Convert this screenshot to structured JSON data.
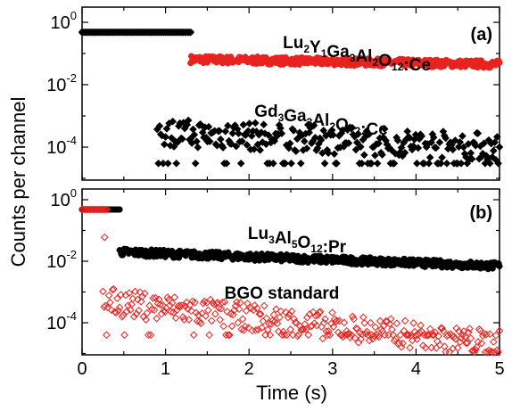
{
  "chart_data": {
    "type": "scatter",
    "xlabel": "Time (s)",
    "ylabel": "Counts per channel",
    "xlim": [
      0,
      5
    ],
    "x_ticks": [
      "0",
      "1",
      "2",
      "3",
      "4",
      "5"
    ],
    "y_scale": "log",
    "grid": false,
    "panels": [
      {
        "label": "(a)",
        "ylim": [
          1e-05,
          1
        ],
        "y_ticks": [
          {
            "value": 1,
            "base": "10",
            "exp": "0"
          },
          {
            "value": 0.01,
            "base": "10",
            "exp": "-2"
          },
          {
            "value": 0.0001,
            "base": "10",
            "exp": "-4"
          }
        ],
        "series": [
          {
            "name_parts": [
              [
                "Lu",
                ""
              ],
              [
                "2",
                "sub"
              ],
              [
                "Y",
                ""
              ],
              [
                "1",
                "sub"
              ],
              [
                "Ga",
                ""
              ],
              [
                "3",
                "sub"
              ],
              [
                "Al",
                ""
              ],
              [
                "2",
                "sub"
              ],
              [
                "O",
                ""
              ],
              [
                "12",
                "sub"
              ],
              [
                ":Ce",
                ""
              ]
            ],
            "color": "#e8231f",
            "marker": "circle",
            "plateau": {
              "x_start": 0.0,
              "x_end": 1.3,
              "y": 0.48
            },
            "tail": {
              "x_start": 1.3,
              "x_end": 5.0,
              "y_start": 0.065,
              "y_end": 0.045
            }
          },
          {
            "name_parts": [
              [
                "Gd",
                ""
              ],
              [
                "3",
                "sub"
              ],
              [
                "Ga",
                ""
              ],
              [
                "3",
                "sub"
              ],
              [
                "Al",
                ""
              ],
              [
                "2",
                "sub"
              ],
              [
                "O",
                ""
              ],
              [
                "12",
                "sub"
              ],
              [
                ":Ce",
                ""
              ]
            ],
            "color": "#000000",
            "marker": "diamond",
            "plateau": {
              "x_start": 0.0,
              "x_end": 1.3,
              "y": 0.48
            },
            "tail": {
              "x_start": 0.9,
              "x_end": 5.0,
              "y_start": 0.0003,
              "y_end": 0.0001,
              "floor": 3e-05
            }
          }
        ]
      },
      {
        "label": "(b)",
        "ylim": [
          1e-05,
          1
        ],
        "y_ticks": [
          {
            "value": 1,
            "base": "10",
            "exp": "0"
          },
          {
            "value": 0.01,
            "base": "10",
            "exp": "-2"
          },
          {
            "value": 0.0001,
            "base": "10",
            "exp": "-4"
          }
        ],
        "series": [
          {
            "name_parts": [
              [
                "Lu",
                ""
              ],
              [
                "3",
                "sub"
              ],
              [
                "Al",
                ""
              ],
              [
                "5",
                "sub"
              ],
              [
                "O",
                ""
              ],
              [
                "12",
                "sub"
              ],
              [
                ":Pr",
                ""
              ]
            ],
            "color": "#000000",
            "marker": "circle",
            "plateau": {
              "x_start": 0.0,
              "x_end": 0.45,
              "y": 0.48
            },
            "tail": {
              "x_start": 0.45,
              "x_end": 5.0,
              "y_start": 0.02,
              "y_end": 0.007
            }
          },
          {
            "name_parts": [
              [
                "BGO standard",
                ""
              ]
            ],
            "color": "#e8231f",
            "marker": "diamond",
            "plateau": {
              "x_start": 0.0,
              "x_end": 0.3,
              "y": 0.48
            },
            "tail": {
              "x_start": 0.25,
              "x_end": 5.0,
              "y_start": 0.0005,
              "y_end": 2e-05,
              "floor": 4e-05
            },
            "outlier": {
              "x": 0.27,
              "y": 0.06
            }
          }
        ]
      }
    ]
  }
}
